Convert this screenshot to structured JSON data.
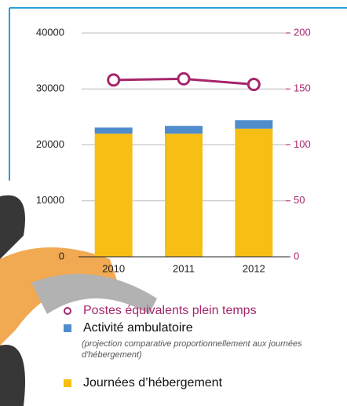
{
  "chart_data": {
    "type": "bar",
    "stacked": true,
    "categories": [
      "2010",
      "2011",
      "2012"
    ],
    "series": [
      {
        "name": "Postes équivalents plein temps",
        "type": "line",
        "axis": "y2",
        "color": "#a5266b",
        "values": [
          158,
          159,
          154
        ]
      },
      {
        "name": "Activité ambulatoire",
        "type": "bar",
        "color": "#4f8ccc",
        "values": [
          1100,
          1400,
          1500
        ],
        "note": "(projection comparative proportionnellement aux journées d'hébergement)"
      },
      {
        "name": "Journées d’hébergement",
        "type": "bar",
        "color": "#f7be13",
        "values": [
          22000,
          22000,
          22900
        ]
      }
    ],
    "ylim": [
      0,
      40000
    ],
    "yticks": [
      0,
      10000,
      20000,
      30000,
      40000
    ],
    "y2lim": [
      0,
      200
    ],
    "y2ticks": [
      0,
      50,
      100,
      150,
      200
    ],
    "grid": true
  }
}
